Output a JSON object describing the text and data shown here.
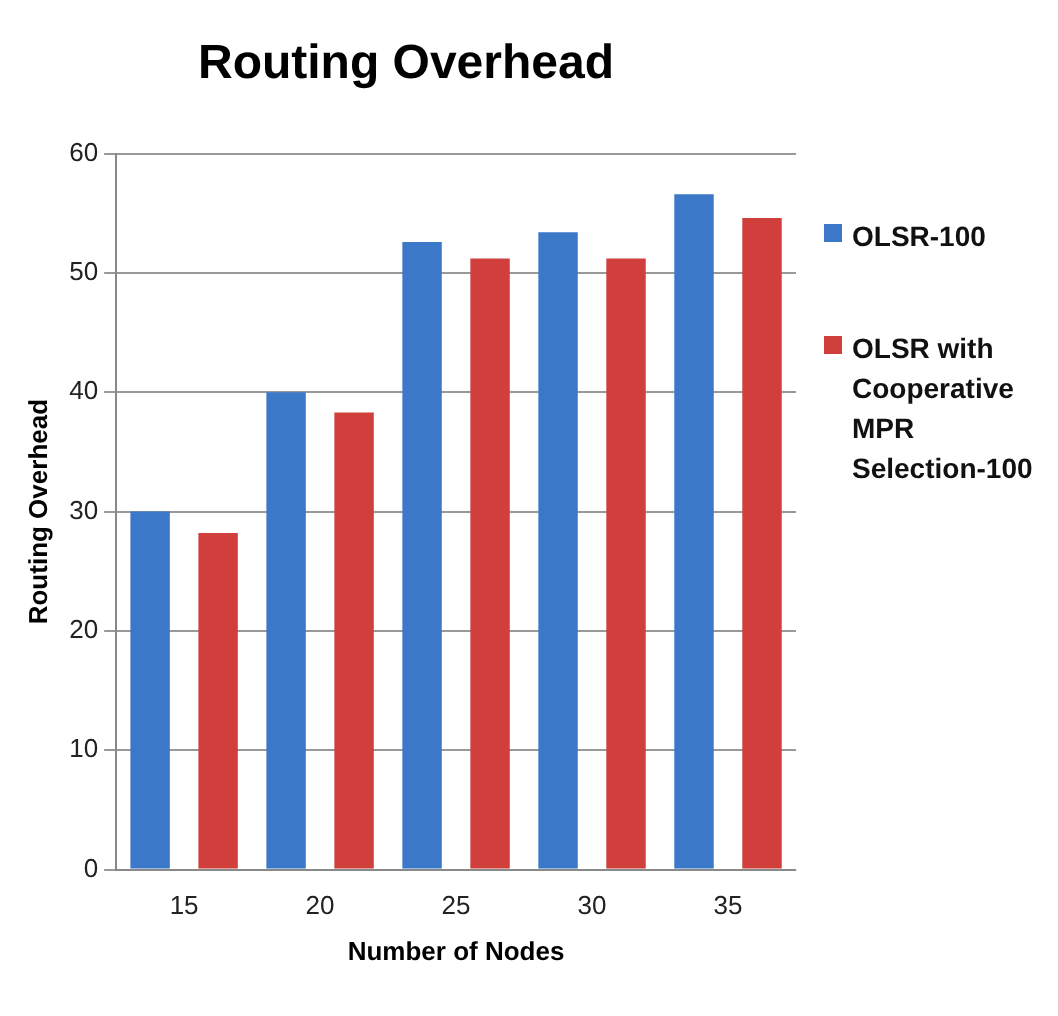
{
  "chart_data": {
    "type": "bar",
    "title": "Routing Overhead",
    "xlabel": "Number of Nodes",
    "ylabel": "Routing Overhead",
    "categories": [
      "15",
      "20",
      "25",
      "30",
      "35"
    ],
    "series": [
      {
        "name": "OLSR-100",
        "color": "#3b78c8",
        "values": [
          30,
          40,
          52.6,
          53.4,
          56.6
        ]
      },
      {
        "name": "OLSR with Cooperative MPR Selection-100",
        "color": "#d03f3c",
        "values": [
          28.2,
          38.3,
          51.2,
          51.2,
          54.6
        ]
      }
    ],
    "ylim": [
      0,
      60
    ],
    "yticks": [
      0,
      10,
      20,
      30,
      40,
      50,
      60
    ],
    "grid": "y",
    "legend": "right"
  }
}
